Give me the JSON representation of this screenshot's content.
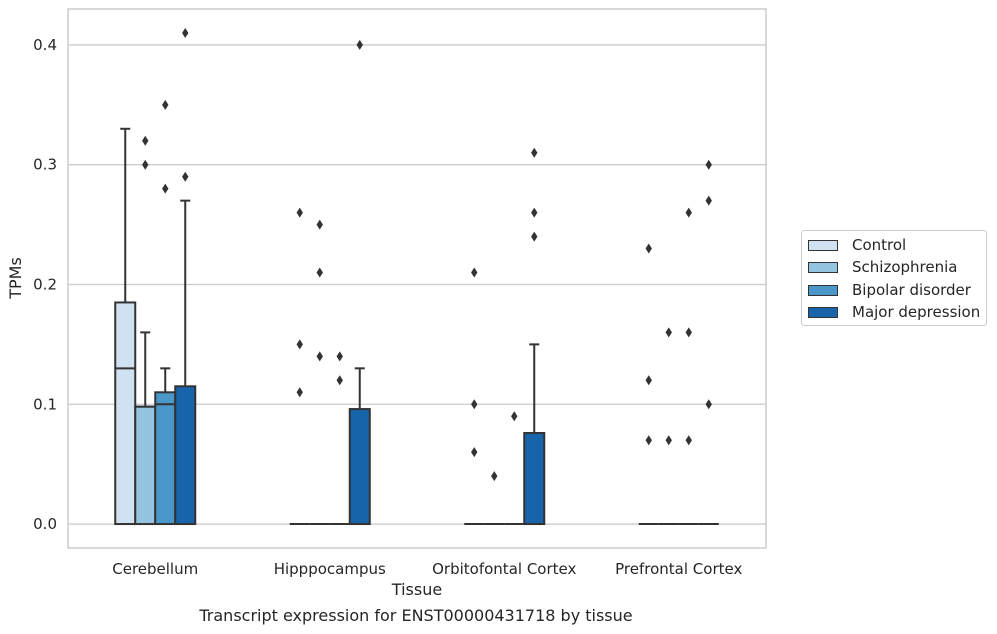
{
  "caption": "Transcript expression for ENST00000431718 by tissue",
  "chart_data": {
    "type": "box",
    "xlabel": "Tissue",
    "ylabel": "TPMs",
    "ylim": [
      -0.02,
      0.43
    ],
    "yticks": [
      0.0,
      0.1,
      0.2,
      0.3,
      0.4
    ],
    "ytick_labels": [
      "0.0",
      "0.1",
      "0.2",
      "0.3",
      "0.4"
    ],
    "grid": "horizontal",
    "legend_position": "right",
    "categories": [
      "Cerebellum",
      "Hipppocampus",
      "Orbitofontal Cortex",
      "Prefrontal Cortex"
    ],
    "series": [
      {
        "name": "Control",
        "color": "#d0e1f2",
        "boxes": [
          {
            "q1": 0.0,
            "median": 0.13,
            "q3": 0.185,
            "whisker_low": 0.0,
            "whisker_high": 0.33,
            "outliers": []
          },
          {
            "q1": 0.0,
            "median": 0.0,
            "q3": 0.0,
            "whisker_low": 0.0,
            "whisker_high": 0.0,
            "outliers": [
              0.11,
              0.15,
              0.26
            ]
          },
          {
            "q1": 0.0,
            "median": 0.0,
            "q3": 0.0,
            "whisker_low": 0.0,
            "whisker_high": 0.0,
            "outliers": [
              0.06,
              0.1,
              0.21
            ]
          },
          {
            "q1": 0.0,
            "median": 0.0,
            "q3": 0.0,
            "whisker_low": 0.0,
            "whisker_high": 0.0,
            "outliers": [
              0.07,
              0.12,
              0.23
            ]
          }
        ]
      },
      {
        "name": "Schizophrenia",
        "color": "#94c4df",
        "boxes": [
          {
            "q1": 0.0,
            "median": 0.098,
            "q3": 0.098,
            "whisker_low": 0.0,
            "whisker_high": 0.16,
            "outliers": [
              0.3,
              0.32
            ]
          },
          {
            "q1": 0.0,
            "median": 0.0,
            "q3": 0.0,
            "whisker_low": 0.0,
            "whisker_high": 0.0,
            "outliers": [
              0.14,
              0.21,
              0.25
            ]
          },
          {
            "q1": 0.0,
            "median": 0.0,
            "q3": 0.0,
            "whisker_low": 0.0,
            "whisker_high": 0.0,
            "outliers": [
              0.04
            ]
          },
          {
            "q1": 0.0,
            "median": 0.0,
            "q3": 0.0,
            "whisker_low": 0.0,
            "whisker_high": 0.0,
            "outliers": [
              0.07,
              0.16
            ]
          }
        ]
      },
      {
        "name": "Bipolar disorder",
        "color": "#4a98c9",
        "boxes": [
          {
            "q1": 0.0,
            "median": 0.1,
            "q3": 0.11,
            "whisker_low": 0.0,
            "whisker_high": 0.13,
            "outliers": [
              0.28,
              0.35
            ]
          },
          {
            "q1": 0.0,
            "median": 0.0,
            "q3": 0.0,
            "whisker_low": 0.0,
            "whisker_high": 0.0,
            "outliers": [
              0.12,
              0.14
            ]
          },
          {
            "q1": 0.0,
            "median": 0.0,
            "q3": 0.0,
            "whisker_low": 0.0,
            "whisker_high": 0.0,
            "outliers": [
              0.09
            ]
          },
          {
            "q1": 0.0,
            "median": 0.0,
            "q3": 0.0,
            "whisker_low": 0.0,
            "whisker_high": 0.0,
            "outliers": [
              0.07,
              0.16,
              0.26
            ]
          }
        ]
      },
      {
        "name": "Major depression",
        "color": "#1764ab",
        "boxes": [
          {
            "q1": 0.0,
            "median": 0.0,
            "q3": 0.115,
            "whisker_low": 0.0,
            "whisker_high": 0.27,
            "outliers": [
              0.29,
              0.41
            ]
          },
          {
            "q1": 0.0,
            "median": 0.0,
            "q3": 0.096,
            "whisker_low": 0.0,
            "whisker_high": 0.13,
            "outliers": [
              0.4
            ]
          },
          {
            "q1": 0.0,
            "median": 0.0,
            "q3": 0.076,
            "whisker_low": 0.0,
            "whisker_high": 0.15,
            "outliers": [
              0.24,
              0.26,
              0.31
            ]
          },
          {
            "q1": 0.0,
            "median": 0.0,
            "q3": 0.0,
            "whisker_low": 0.0,
            "whisker_high": 0.0,
            "outliers": [
              0.1,
              0.27,
              0.3
            ]
          }
        ]
      }
    ]
  }
}
